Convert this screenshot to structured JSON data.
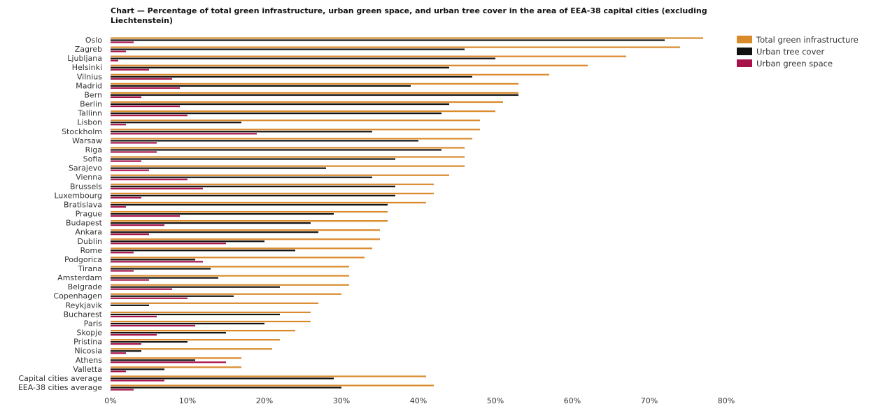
{
  "chart_data": {
    "type": "bar",
    "orientation": "horizontal",
    "title": "Chart — Percentage of total green infrastructure, urban green space, and urban tree cover in the area of EEA-38 capital cities (excluding Liechtenstein)",
    "xlim": [
      0,
      80
    ],
    "xticks": [
      "0%",
      "10%",
      "20%",
      "30%",
      "40%",
      "50%",
      "60%",
      "70%",
      "80%"
    ],
    "grid": false,
    "legend_position": "top-right",
    "categories": [
      "Oslo",
      "Zagreb",
      "Ljubljana",
      "Helsinki",
      "Vilnius",
      "Madrid",
      "Bern",
      "Berlin",
      "Tallinn",
      "Lisbon",
      "Stockholm",
      "Warsaw",
      "Riga",
      "Sofia",
      "Sarajevo",
      "Vienna",
      "Brussels",
      "Luxembourg",
      "Bratislava",
      "Prague",
      "Budapest",
      "Ankara",
      "Dublin",
      "Rome",
      "Podgorica",
      "Tirana",
      "Amsterdam",
      "Belgrade",
      "Copenhagen",
      "Reykjavik",
      "Bucharest",
      "Paris",
      "Skopje",
      "Pristina",
      "Nicosia",
      "Athens",
      "Valletta",
      "Capital cities average",
      "EEA-38 cities average"
    ],
    "series": [
      {
        "name": "Total green infrastructure",
        "color": "#d98a2b",
        "values": [
          77,
          74,
          67,
          62,
          57,
          53,
          53,
          51,
          50,
          48,
          48,
          47,
          46,
          46,
          46,
          44,
          42,
          42,
          41,
          36,
          36,
          35,
          35,
          34,
          33,
          31,
          31,
          31,
          30,
          27,
          26,
          26,
          24,
          22,
          21,
          17,
          17,
          41,
          42
        ]
      },
      {
        "name": "Urban tree cover",
        "color": "#111111",
        "values": [
          72,
          46,
          50,
          44,
          47,
          39,
          53,
          44,
          43,
          17,
          34,
          40,
          43,
          37,
          28,
          34,
          37,
          37,
          36,
          29,
          26,
          27,
          20,
          24,
          11,
          13,
          14,
          22,
          16,
          5,
          22,
          20,
          15,
          10,
          4,
          11,
          7,
          29,
          30
        ]
      },
      {
        "name": "Urban green space",
        "color": "#a8124a",
        "values": [
          3,
          2,
          1,
          5,
          8,
          9,
          4,
          9,
          10,
          2,
          19,
          6,
          6,
          4,
          5,
          10,
          12,
          4,
          2,
          9,
          7,
          5,
          15,
          3,
          12,
          3,
          5,
          8,
          10,
          0,
          6,
          11,
          6,
          4,
          2,
          15,
          2,
          7,
          3
        ]
      }
    ]
  }
}
